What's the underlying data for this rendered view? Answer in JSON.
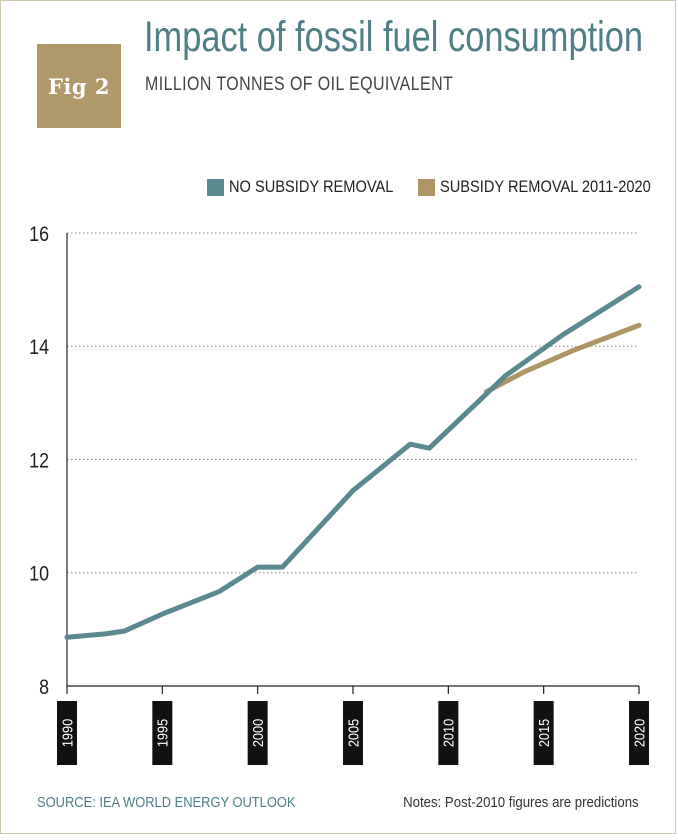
{
  "badge": {
    "label": "Fig 2"
  },
  "notes": {
    "source": "SOURCE: IEA WORLD ENERGY OUTLOOK",
    "predictions": "Notes: Post-2010 figures are predictions"
  },
  "colors": {
    "accent_teal": "#5a8990",
    "accent_gold": "#ad9663",
    "title": "#4e7f87",
    "badge": "#b09868"
  },
  "chart_data": {
    "type": "line",
    "title": "Impact of fossil fuel consumption",
    "subtitle": "MILLION TONNES OF OIL EQUIVALENT",
    "xlabel": "",
    "ylabel": "",
    "xlim": [
      1990,
      2020
    ],
    "ylim": [
      8,
      16
    ],
    "x_ticks": [
      "1990",
      "1995",
      "2000",
      "2005",
      "2010",
      "2015",
      "2020"
    ],
    "y_ticks": [
      "8",
      "10",
      "12",
      "14",
      "16"
    ],
    "grid": "horizontal-dotted",
    "legend_position": "top-right",
    "series": [
      {
        "name": "NO SUBSIDY REMOVAL",
        "color": "#5a8990",
        "x": [
          1990,
          1992,
          1993,
          1995,
          1998,
          2000,
          2001.3,
          2005,
          2008,
          2009,
          2013,
          2016,
          2020
        ],
        "y": [
          8.86,
          8.92,
          8.97,
          9.27,
          9.67,
          10.1,
          10.1,
          11.45,
          12.27,
          12.2,
          13.48,
          14.2,
          15.05
        ]
      },
      {
        "name": "SUBSIDY REMOVAL 2011-2020",
        "color": "#ad9663",
        "x": [
          2012,
          2014,
          2016.5,
          2020
        ],
        "y": [
          13.2,
          13.55,
          13.92,
          14.37
        ]
      }
    ]
  }
}
